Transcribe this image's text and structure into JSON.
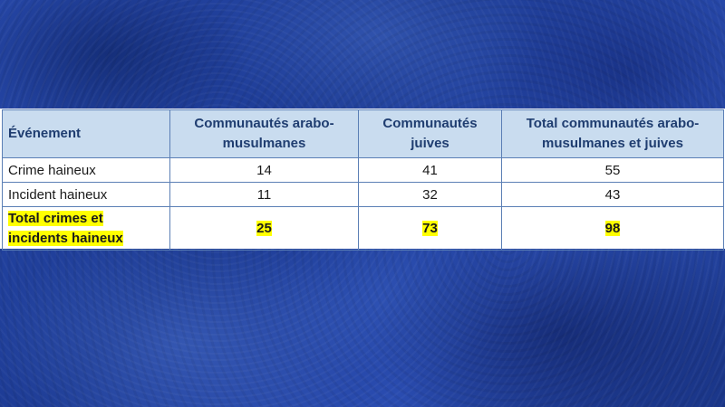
{
  "table": {
    "headers": [
      "Événement",
      "Communautés arabo-musulmanes",
      "Communautés juives",
      "Total communautés arabo-musulmanes et juives"
    ],
    "rows": [
      [
        "Crime haineux",
        "14",
        "41",
        "55"
      ],
      [
        "Incident haineux",
        "11",
        "32",
        "43"
      ]
    ],
    "total_row": [
      "Total crimes et incidents haineux",
      "25",
      "73",
      "98"
    ]
  },
  "colors": {
    "background": "#1f3f9a",
    "header_fill": "#c9dcef",
    "header_text": "#1f3d70",
    "highlight": "#ffff00",
    "border": "#5b7fb5"
  }
}
